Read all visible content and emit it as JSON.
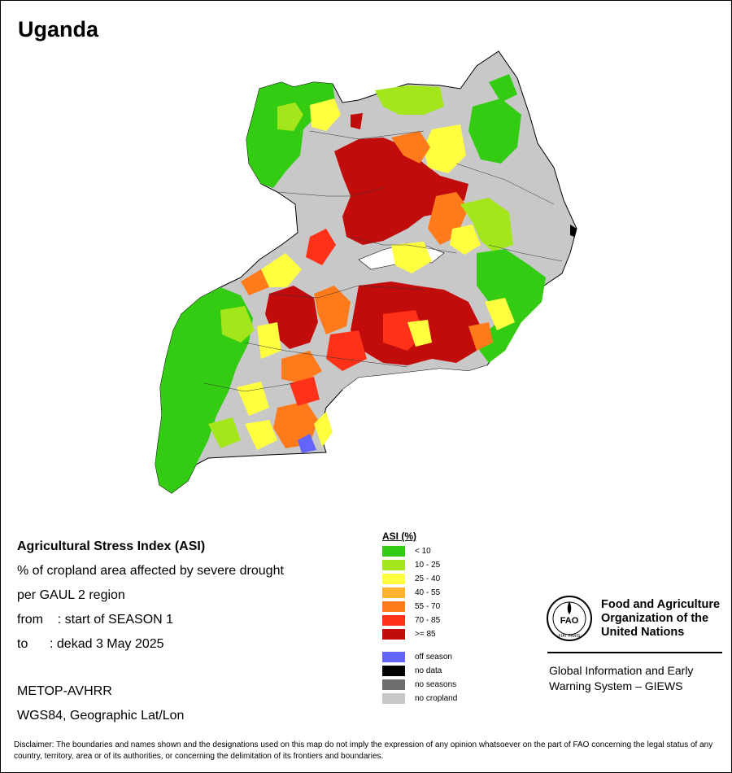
{
  "title": "Uganda",
  "info": {
    "line1": "Agricultural Stress Index (ASI)",
    "line2": "% of cropland area affected by severe drought",
    "line3": "per GAUL 2 region",
    "line4": "from    : start of SEASON 1",
    "line5": "to      : dekad 3 May 2025",
    "sensor": "METOP-AVHRR",
    "projection": "WGS84, Geographic Lat/Lon"
  },
  "legend": {
    "title": "ASI (%)",
    "classes": [
      {
        "label": "< 10",
        "color": "#33cc12"
      },
      {
        "label": "10 - 25",
        "color": "#a3e61c"
      },
      {
        "label": "25 - 40",
        "color": "#ffff40"
      },
      {
        "label": "40 - 55",
        "color": "#ffb22d"
      },
      {
        "label": "55 - 70",
        "color": "#ff7a1a"
      },
      {
        "label": "70 - 85",
        "color": "#ff3219"
      },
      {
        "label": ">= 85",
        "color": "#c20b0b"
      }
    ],
    "special": [
      {
        "label": "off season",
        "color": "#6464ff"
      },
      {
        "label": "no data",
        "color": "#000000"
      },
      {
        "label": "no seasons",
        "color": "#6e6e6e"
      },
      {
        "label": "no cropland",
        "color": "#c8c8c8"
      }
    ]
  },
  "fao": {
    "line1": "Food and Agriculture",
    "line2": "Organization of the",
    "line3": "United Nations",
    "logo_text": "FAO",
    "logo_motto": "FIAT PANIS"
  },
  "giews": {
    "line1": "Global Information and Early",
    "line2": "Warning System – GIEWS"
  },
  "disclaimer": "Disclaimer: The boundaries and names shown and the designations used on this map do not imply the expression of any opinion whatsoever on the part of FAO concerning the legal status of any country, territory, area or of its authorities, or concerning the delimitation of its frontiers and boundaries."
}
